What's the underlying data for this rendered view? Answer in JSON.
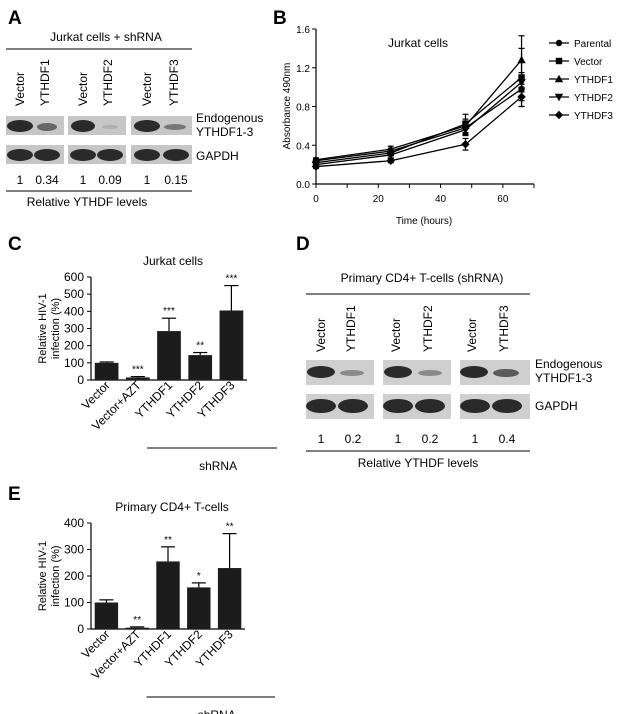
{
  "panels": {
    "A": {
      "label": "A",
      "title": "Jurkat cells + shRNA",
      "lanes": [
        "Vector",
        "YTHDF1",
        "Vector",
        "YTHDF2",
        "Vector",
        "YTHDF3"
      ],
      "row_labels": [
        "Endogenous",
        "YTHDF1-3",
        "GAPDH"
      ],
      "values": [
        "1",
        "0.34",
        "1",
        "0.09",
        "1",
        "0.15"
      ],
      "footer": "Relative YTHDF levels"
    },
    "B": {
      "label": "B"
    },
    "C": {
      "label": "C"
    },
    "D": {
      "label": "D",
      "title": "Primary CD4+ T-cells (shRNA)",
      "lanes": [
        "Vector",
        "YTHDF1",
        "Vector",
        "YTHDF2",
        "Vector",
        "YTHDF3"
      ],
      "row_labels": [
        "Endogenous",
        "YTHDF1-3",
        "GAPDH"
      ],
      "values": [
        "1",
        "0.2",
        "1",
        "0.2",
        "1",
        "0.4"
      ],
      "footer": "Relative YTHDF levels"
    },
    "E": {
      "label": "E"
    }
  },
  "chart_data": [
    {
      "panel": "B",
      "type": "line",
      "title": "Jurkat cells",
      "xlabel": "Time (hours)",
      "ylabel": "Absorbance 490nm",
      "xlim": [
        0,
        70
      ],
      "ylim": [
        0,
        1.6
      ],
      "xticks": [
        "0",
        "10",
        "20",
        "30",
        "40",
        "50",
        "60",
        "70"
      ],
      "yticks": [
        "0.0",
        "0.4",
        "0.8",
        "1.2",
        "1.6"
      ],
      "x": [
        0,
        24,
        48,
        66
      ],
      "legend": "right",
      "series": [
        {
          "name": "Parental",
          "marker": "circle",
          "values": [
            0.24,
            0.34,
            0.58,
            0.98
          ],
          "err": [
            0.02,
            0.03,
            0.07,
            0.12
          ]
        },
        {
          "name": "Vector",
          "marker": "square",
          "values": [
            0.22,
            0.32,
            0.62,
            1.1
          ],
          "err": [
            0.02,
            0.03,
            0.1,
            0.3
          ]
        },
        {
          "name": "YTHDF1",
          "marker": "triangle",
          "values": [
            0.25,
            0.36,
            0.6,
            1.28
          ],
          "err": [
            0.02,
            0.03,
            0.07,
            0.25
          ]
        },
        {
          "name": "YTHDF2",
          "marker": "invtriangle",
          "values": [
            0.2,
            0.3,
            0.56,
            1.05
          ],
          "err": [
            0.02,
            0.03,
            0.06,
            0.1
          ]
        },
        {
          "name": "YTHDF3",
          "marker": "diamond",
          "values": [
            0.18,
            0.24,
            0.41,
            0.9
          ],
          "err": [
            0.02,
            0.02,
            0.06,
            0.1
          ]
        }
      ]
    },
    {
      "panel": "C",
      "type": "bar",
      "title": "Jurkat cells",
      "ylabel": [
        "Relative HIV-1",
        "infection (%)"
      ],
      "ylim": [
        0,
        600
      ],
      "yticks": [
        "0",
        "100",
        "200",
        "300",
        "400",
        "500",
        "600"
      ],
      "categories": [
        "Vector",
        "Vector+AZT",
        "YTHDF1",
        "YTHDF2",
        "YTHDF3"
      ],
      "values": [
        100,
        15,
        285,
        145,
        405
      ],
      "errors": [
        5,
        5,
        75,
        15,
        145
      ],
      "significance": [
        "",
        "***",
        "***",
        "**",
        "***"
      ],
      "group_label": "shRNA"
    },
    {
      "panel": "E",
      "type": "bar",
      "title": "Primary CD4+ T-cells",
      "ylabel": [
        "Relative HIV-1",
        "infection (%)"
      ],
      "ylim": [
        0,
        400
      ],
      "yticks": [
        "0",
        "100",
        "200",
        "300",
        "400"
      ],
      "categories": [
        "Vector",
        "Vector+AZT",
        "YTHDF1",
        "YTHDF2",
        "YTHDF3"
      ],
      "values": [
        100,
        5,
        255,
        157,
        230
      ],
      "errors": [
        10,
        3,
        55,
        17,
        130
      ],
      "significance": [
        "",
        "**",
        "**",
        "*",
        "**"
      ],
      "group_label": "shRNA"
    }
  ]
}
